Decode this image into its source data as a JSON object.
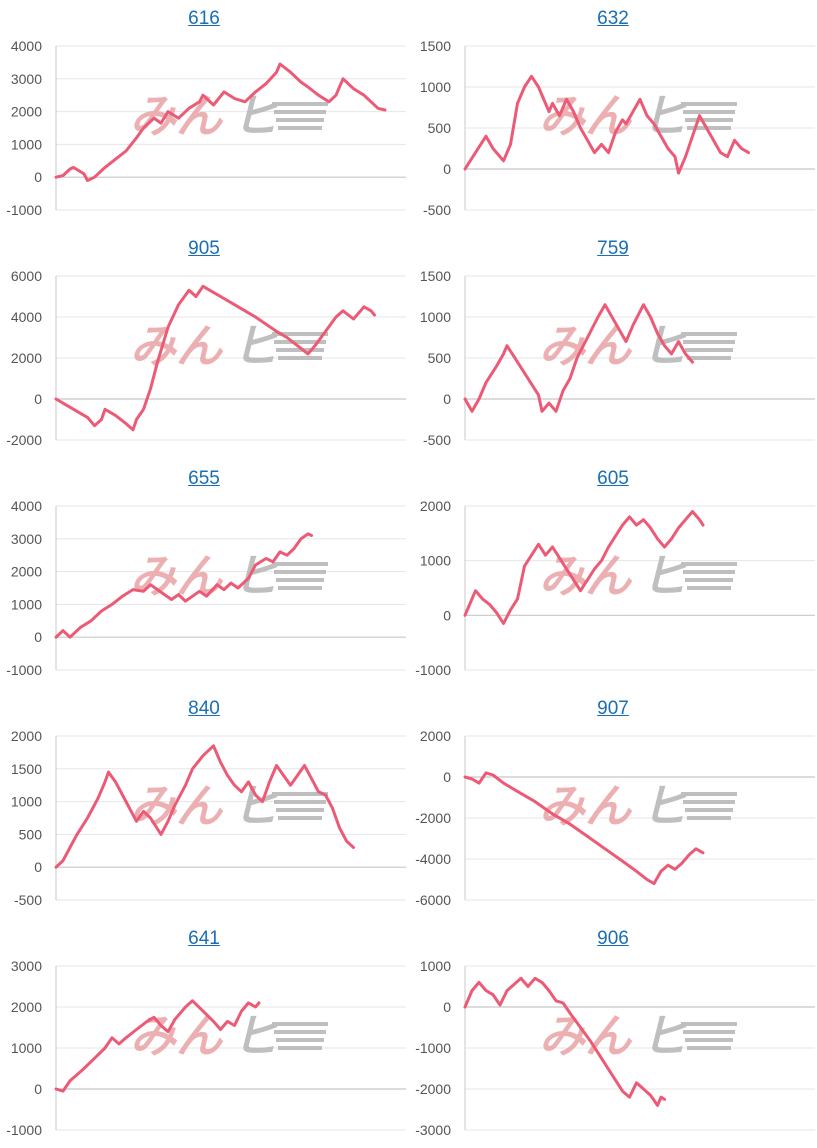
{
  "colors": {
    "line": "#ec5a76",
    "grid": "#e6e6e6",
    "axis": "#c8c8c8",
    "tick_text": "#555555",
    "title_link": "#1a6fb4",
    "watermark_left": "#e9a3a5",
    "watermark_right": "#b5b5b5"
  },
  "watermark": {
    "left_text": "みん",
    "right_text": "ヒ"
  },
  "chart_data": [
    {
      "type": "line",
      "title": "616",
      "ylim": [
        -1000,
        4000
      ],
      "yticks": [
        "4000",
        "3000",
        "2000",
        "1000",
        "0",
        "-1000"
      ],
      "x_max": 100,
      "values": [
        [
          0,
          0
        ],
        [
          2,
          50
        ],
        [
          4,
          250
        ],
        [
          5,
          300
        ],
        [
          8,
          100
        ],
        [
          9,
          -100
        ],
        [
          11,
          0
        ],
        [
          14,
          300
        ],
        [
          17,
          550
        ],
        [
          20,
          800
        ],
        [
          23,
          1200
        ],
        [
          25,
          1500
        ],
        [
          28,
          1800
        ],
        [
          30,
          1650
        ],
        [
          32,
          2000
        ],
        [
          35,
          1800
        ],
        [
          38,
          2100
        ],
        [
          41,
          2300
        ],
        [
          42,
          2500
        ],
        [
          45,
          2200
        ],
        [
          48,
          2600
        ],
        [
          51,
          2400
        ],
        [
          54,
          2300
        ],
        [
          57,
          2600
        ],
        [
          60,
          2850
        ],
        [
          63,
          3200
        ],
        [
          64,
          3450
        ],
        [
          67,
          3200
        ],
        [
          70,
          2900
        ],
        [
          72,
          2750
        ],
        [
          75,
          2500
        ],
        [
          78,
          2300
        ],
        [
          80,
          2500
        ],
        [
          82,
          3000
        ],
        [
          85,
          2700
        ],
        [
          88,
          2500
        ],
        [
          90,
          2300
        ],
        [
          92,
          2100
        ],
        [
          94,
          2050
        ]
      ]
    },
    {
      "type": "line",
      "title": "632",
      "ylim": [
        -500,
        1500
      ],
      "yticks": [
        "1500",
        "1000",
        "500",
        "0",
        "-500"
      ],
      "x_max": 100,
      "values": [
        [
          0,
          0
        ],
        [
          3,
          200
        ],
        [
          6,
          400
        ],
        [
          8,
          250
        ],
        [
          11,
          100
        ],
        [
          13,
          300
        ],
        [
          15,
          800
        ],
        [
          17,
          1000
        ],
        [
          19,
          1130
        ],
        [
          21,
          1000
        ],
        [
          24,
          700
        ],
        [
          25,
          800
        ],
        [
          27,
          650
        ],
        [
          29,
          850
        ],
        [
          31,
          700
        ],
        [
          33,
          500
        ],
        [
          35,
          350
        ],
        [
          37,
          200
        ],
        [
          39,
          300
        ],
        [
          41,
          200
        ],
        [
          43,
          450
        ],
        [
          45,
          600
        ],
        [
          46,
          550
        ],
        [
          48,
          700
        ],
        [
          50,
          850
        ],
        [
          52,
          650
        ],
        [
          54,
          550
        ],
        [
          56,
          400
        ],
        [
          58,
          250
        ],
        [
          60,
          150
        ],
        [
          61,
          -50
        ],
        [
          63,
          150
        ],
        [
          65,
          400
        ],
        [
          67,
          650
        ],
        [
          69,
          500
        ],
        [
          71,
          350
        ],
        [
          73,
          200
        ],
        [
          75,
          150
        ],
        [
          77,
          350
        ],
        [
          79,
          250
        ],
        [
          81,
          200
        ]
      ]
    },
    {
      "type": "line",
      "title": "905",
      "ylim": [
        -2000,
        6000
      ],
      "yticks": [
        "6000",
        "4000",
        "2000",
        "0",
        "-2000"
      ],
      "x_max": 100,
      "values": [
        [
          0,
          0
        ],
        [
          3,
          -300
        ],
        [
          6,
          -600
        ],
        [
          9,
          -900
        ],
        [
          11,
          -1300
        ],
        [
          13,
          -1000
        ],
        [
          14,
          -500
        ],
        [
          17,
          -800
        ],
        [
          20,
          -1200
        ],
        [
          22,
          -1500
        ],
        [
          23,
          -1000
        ],
        [
          25,
          -500
        ],
        [
          27,
          500
        ],
        [
          29,
          1800
        ],
        [
          32,
          3500
        ],
        [
          35,
          4600
        ],
        [
          38,
          5300
        ],
        [
          40,
          5000
        ],
        [
          42,
          5500
        ],
        [
          45,
          5200
        ],
        [
          48,
          4900
        ],
        [
          51,
          4600
        ],
        [
          54,
          4300
        ],
        [
          57,
          4000
        ],
        [
          60,
          3650
        ],
        [
          63,
          3300
        ],
        [
          66,
          3000
        ],
        [
          69,
          2600
        ],
        [
          72,
          2200
        ],
        [
          74,
          2600
        ],
        [
          77,
          3300
        ],
        [
          80,
          4000
        ],
        [
          82,
          4300
        ],
        [
          85,
          3900
        ],
        [
          88,
          4500
        ],
        [
          90,
          4300
        ],
        [
          91,
          4100
        ]
      ]
    },
    {
      "type": "line",
      "title": "759",
      "ylim": [
        -500,
        1500
      ],
      "yticks": [
        "1500",
        "1000",
        "500",
        "0",
        "-500"
      ],
      "x_max": 100,
      "values": [
        [
          0,
          0
        ],
        [
          2,
          -150
        ],
        [
          4,
          0
        ],
        [
          6,
          200
        ],
        [
          9,
          400
        ],
        [
          11,
          550
        ],
        [
          12,
          650
        ],
        [
          15,
          450
        ],
        [
          18,
          250
        ],
        [
          21,
          50
        ],
        [
          22,
          -150
        ],
        [
          24,
          -50
        ],
        [
          26,
          -150
        ],
        [
          28,
          100
        ],
        [
          30,
          250
        ],
        [
          32,
          500
        ],
        [
          35,
          750
        ],
        [
          38,
          1000
        ],
        [
          40,
          1150
        ],
        [
          42,
          1000
        ],
        [
          44,
          850
        ],
        [
          46,
          700
        ],
        [
          48,
          900
        ],
        [
          51,
          1150
        ],
        [
          53,
          1000
        ],
        [
          55,
          800
        ],
        [
          57,
          650
        ],
        [
          59,
          550
        ],
        [
          61,
          700
        ],
        [
          63,
          550
        ],
        [
          65,
          450
        ]
      ]
    },
    {
      "type": "line",
      "title": "655",
      "ylim": [
        -1000,
        4000
      ],
      "yticks": [
        "4000",
        "3000",
        "2000",
        "1000",
        "0",
        "-1000"
      ],
      "x_max": 100,
      "values": [
        [
          0,
          0
        ],
        [
          2,
          200
        ],
        [
          4,
          0
        ],
        [
          7,
          300
        ],
        [
          10,
          500
        ],
        [
          13,
          800
        ],
        [
          16,
          1000
        ],
        [
          19,
          1250
        ],
        [
          22,
          1450
        ],
        [
          25,
          1400
        ],
        [
          27,
          1600
        ],
        [
          29,
          1450
        ],
        [
          31,
          1300
        ],
        [
          33,
          1150
        ],
        [
          35,
          1300
        ],
        [
          37,
          1100
        ],
        [
          39,
          1250
        ],
        [
          41,
          1400
        ],
        [
          43,
          1250
        ],
        [
          46,
          1600
        ],
        [
          48,
          1450
        ],
        [
          50,
          1650
        ],
        [
          52,
          1500
        ],
        [
          55,
          1800
        ],
        [
          57,
          2200
        ],
        [
          60,
          2400
        ],
        [
          62,
          2300
        ],
        [
          64,
          2600
        ],
        [
          66,
          2500
        ],
        [
          68,
          2700
        ],
        [
          70,
          3000
        ],
        [
          72,
          3150
        ],
        [
          73,
          3100
        ]
      ]
    },
    {
      "type": "line",
      "title": "605",
      "ylim": [
        -1000,
        2000
      ],
      "yticks": [
        "2000",
        "1000",
        "0",
        "-1000"
      ],
      "x_max": 100,
      "values": [
        [
          0,
          0
        ],
        [
          3,
          450
        ],
        [
          5,
          300
        ],
        [
          7,
          200
        ],
        [
          9,
          50
        ],
        [
          11,
          -150
        ],
        [
          13,
          100
        ],
        [
          15,
          300
        ],
        [
          17,
          900
        ],
        [
          19,
          1100
        ],
        [
          21,
          1300
        ],
        [
          23,
          1100
        ],
        [
          25,
          1250
        ],
        [
          27,
          1050
        ],
        [
          29,
          850
        ],
        [
          31,
          650
        ],
        [
          33,
          450
        ],
        [
          35,
          650
        ],
        [
          37,
          850
        ],
        [
          39,
          1000
        ],
        [
          41,
          1250
        ],
        [
          43,
          1450
        ],
        [
          45,
          1650
        ],
        [
          47,
          1800
        ],
        [
          49,
          1650
        ],
        [
          51,
          1750
        ],
        [
          53,
          1600
        ],
        [
          55,
          1400
        ],
        [
          57,
          1250
        ],
        [
          59,
          1400
        ],
        [
          61,
          1600
        ],
        [
          63,
          1750
        ],
        [
          65,
          1900
        ],
        [
          67,
          1750
        ],
        [
          68,
          1650
        ]
      ]
    },
    {
      "type": "line",
      "title": "840",
      "ylim": [
        -500,
        2000
      ],
      "yticks": [
        "2000",
        "1500",
        "1000",
        "500",
        "0",
        "-500"
      ],
      "x_max": 100,
      "values": [
        [
          0,
          0
        ],
        [
          2,
          100
        ],
        [
          4,
          300
        ],
        [
          6,
          500
        ],
        [
          9,
          750
        ],
        [
          12,
          1050
        ],
        [
          14,
          1300
        ],
        [
          15,
          1450
        ],
        [
          17,
          1300
        ],
        [
          19,
          1100
        ],
        [
          21,
          900
        ],
        [
          23,
          700
        ],
        [
          25,
          850
        ],
        [
          27,
          750
        ],
        [
          30,
          500
        ],
        [
          32,
          700
        ],
        [
          34,
          950
        ],
        [
          37,
          1250
        ],
        [
          39,
          1500
        ],
        [
          42,
          1700
        ],
        [
          45,
          1850
        ],
        [
          47,
          1600
        ],
        [
          49,
          1400
        ],
        [
          51,
          1250
        ],
        [
          53,
          1150
        ],
        [
          55,
          1300
        ],
        [
          57,
          1100
        ],
        [
          59,
          1000
        ],
        [
          61,
          1300
        ],
        [
          63,
          1550
        ],
        [
          65,
          1400
        ],
        [
          67,
          1250
        ],
        [
          69,
          1400
        ],
        [
          71,
          1550
        ],
        [
          73,
          1350
        ],
        [
          75,
          1150
        ],
        [
          77,
          1100
        ],
        [
          79,
          900
        ],
        [
          81,
          600
        ],
        [
          83,
          400
        ],
        [
          85,
          300
        ]
      ]
    },
    {
      "type": "line",
      "title": "907",
      "ylim": [
        -6000,
        2000
      ],
      "yticks": [
        "2000",
        "0",
        "-2000",
        "-4000",
        "-6000"
      ],
      "x_max": 100,
      "values": [
        [
          0,
          0
        ],
        [
          2,
          -100
        ],
        [
          4,
          -300
        ],
        [
          6,
          200
        ],
        [
          8,
          100
        ],
        [
          11,
          -300
        ],
        [
          15,
          -700
        ],
        [
          20,
          -1200
        ],
        [
          25,
          -1800
        ],
        [
          30,
          -2300
        ],
        [
          35,
          -2900
        ],
        [
          40,
          -3500
        ],
        [
          45,
          -4100
        ],
        [
          49,
          -4600
        ],
        [
          52,
          -5000
        ],
        [
          54,
          -5200
        ],
        [
          56,
          -4600
        ],
        [
          58,
          -4300
        ],
        [
          60,
          -4500
        ],
        [
          62,
          -4200
        ],
        [
          64,
          -3800
        ],
        [
          66,
          -3500
        ],
        [
          68,
          -3700
        ]
      ]
    },
    {
      "type": "line",
      "title": "641",
      "ylim": [
        -1000,
        3000
      ],
      "yticks": [
        "3000",
        "2000",
        "1000",
        "0",
        "-1000"
      ],
      "x_max": 100,
      "values": [
        [
          0,
          0
        ],
        [
          2,
          -50
        ],
        [
          4,
          200
        ],
        [
          6,
          350
        ],
        [
          8,
          500
        ],
        [
          11,
          750
        ],
        [
          14,
          1000
        ],
        [
          16,
          1250
        ],
        [
          18,
          1100
        ],
        [
          20,
          1250
        ],
        [
          23,
          1450
        ],
        [
          26,
          1650
        ],
        [
          28,
          1750
        ],
        [
          30,
          1550
        ],
        [
          32,
          1400
        ],
        [
          34,
          1700
        ],
        [
          37,
          2000
        ],
        [
          39,
          2150
        ],
        [
          42,
          1900
        ],
        [
          45,
          1650
        ],
        [
          47,
          1450
        ],
        [
          49,
          1650
        ],
        [
          51,
          1550
        ],
        [
          53,
          1900
        ],
        [
          55,
          2100
        ],
        [
          57,
          2000
        ],
        [
          58,
          2100
        ]
      ]
    },
    {
      "type": "line",
      "title": "906",
      "ylim": [
        -3000,
        1000
      ],
      "yticks": [
        "1000",
        "0",
        "-1000",
        "-2000",
        "-3000"
      ],
      "x_max": 100,
      "values": [
        [
          0,
          0
        ],
        [
          2,
          400
        ],
        [
          4,
          600
        ],
        [
          6,
          400
        ],
        [
          8,
          300
        ],
        [
          10,
          50
        ],
        [
          12,
          400
        ],
        [
          14,
          550
        ],
        [
          16,
          700
        ],
        [
          18,
          500
        ],
        [
          20,
          700
        ],
        [
          22,
          600
        ],
        [
          24,
          400
        ],
        [
          26,
          150
        ],
        [
          28,
          100
        ],
        [
          30,
          -150
        ],
        [
          33,
          -500
        ],
        [
          36,
          -850
        ],
        [
          39,
          -1250
        ],
        [
          42,
          -1650
        ],
        [
          45,
          -2050
        ],
        [
          47,
          -2200
        ],
        [
          49,
          -1850
        ],
        [
          51,
          -2000
        ],
        [
          53,
          -2150
        ],
        [
          55,
          -2400
        ],
        [
          56,
          -2200
        ],
        [
          57,
          -2250
        ]
      ]
    }
  ]
}
